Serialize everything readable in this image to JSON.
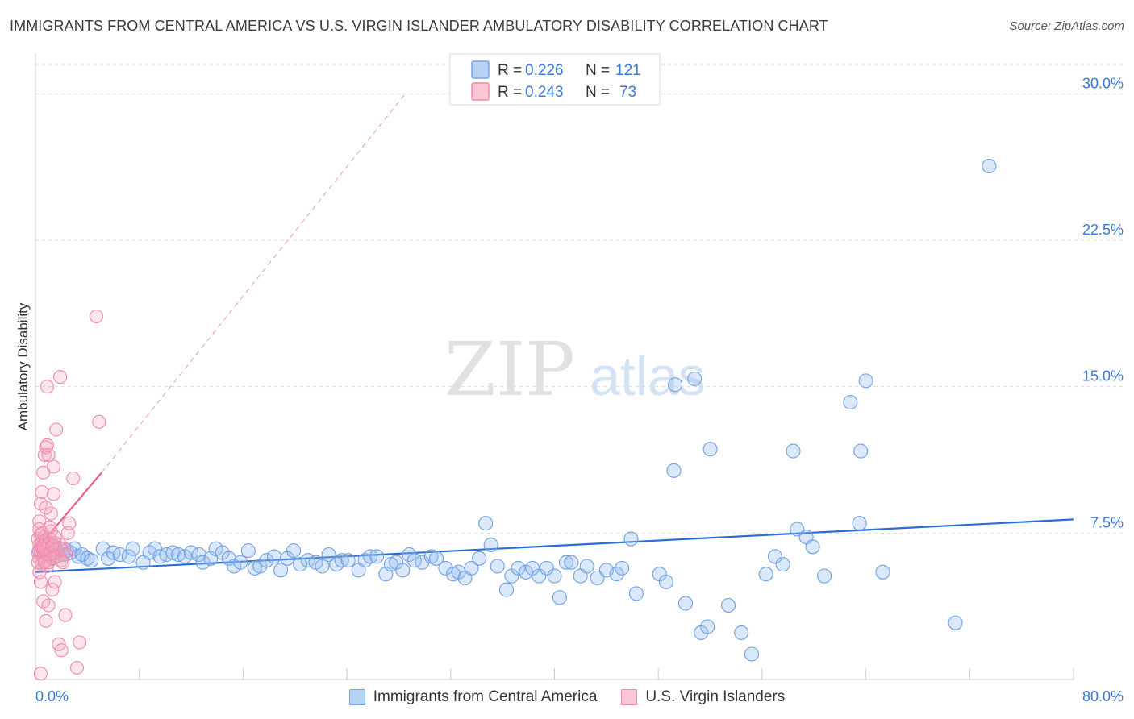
{
  "title": "IMMIGRANTS FROM CENTRAL AMERICA VS U.S. VIRGIN ISLANDER AMBULATORY DISABILITY CORRELATION CHART",
  "source": "Source: ZipAtlas.com",
  "watermark": {
    "zip": "ZIP",
    "atlas": "atlas"
  },
  "legend_top": [
    {
      "r_label": "R =",
      "r_value": "0.226",
      "n_label": "N =",
      "n_value": "121"
    },
    {
      "r_label": "R =",
      "r_value": "0.243",
      "n_label": "N =",
      "n_value": "73"
    }
  ],
  "chart_data": {
    "type": "scatter",
    "xlabel": "",
    "ylabel": "Ambulatory Disability",
    "xlim": [
      0,
      80
    ],
    "ylim": [
      0,
      31.5
    ],
    "x_tick_labels": [
      "0.0%",
      "80.0%"
    ],
    "y_ticks": [
      7.5,
      15.0,
      22.5,
      30.0
    ],
    "y_tick_labels": [
      "7.5%",
      "15.0%",
      "22.5%",
      "30.0%"
    ],
    "grid": "horizontal dashed",
    "legend_position": "top-center and bottom",
    "colors": {
      "blue": "#6fa0e3",
      "blue_line": "#2a6dd4",
      "pink": "#f08aa7",
      "pink_line": "#e8608a",
      "axis_text": "#3a78d8"
    },
    "series": [
      {
        "name": "Immigrants from Central America",
        "color": "#6fa0e3",
        "trend": {
          "x": [
            0,
            80
          ],
          "y": [
            5.5,
            8.2
          ]
        },
        "points": [
          [
            0.3,
            6.6
          ],
          [
            0.5,
            6.8
          ],
          [
            0.7,
            6.4
          ],
          [
            0.9,
            7.0
          ],
          [
            1.1,
            6.6
          ],
          [
            1.3,
            6.2
          ],
          [
            1.5,
            6.8
          ],
          [
            1.7,
            6.5
          ],
          [
            1.9,
            6.7
          ],
          [
            2.1,
            6.4
          ],
          [
            2.4,
            6.6
          ],
          [
            2.7,
            6.5
          ],
          [
            3.0,
            6.7
          ],
          [
            3.3,
            6.3
          ],
          [
            3.6,
            6.4
          ],
          [
            4.0,
            6.2
          ],
          [
            4.3,
            6.1
          ],
          [
            5.2,
            6.7
          ],
          [
            5.6,
            6.2
          ],
          [
            6.0,
            6.5
          ],
          [
            6.5,
            6.4
          ],
          [
            7.2,
            6.3
          ],
          [
            7.5,
            6.7
          ],
          [
            8.3,
            6.0
          ],
          [
            8.8,
            6.5
          ],
          [
            9.2,
            6.7
          ],
          [
            9.6,
            6.3
          ],
          [
            10.1,
            6.4
          ],
          [
            10.6,
            6.5
          ],
          [
            11.0,
            6.4
          ],
          [
            11.5,
            6.3
          ],
          [
            12.0,
            6.5
          ],
          [
            12.6,
            6.4
          ],
          [
            12.9,
            6.0
          ],
          [
            13.5,
            6.2
          ],
          [
            13.9,
            6.7
          ],
          [
            14.4,
            6.5
          ],
          [
            14.9,
            6.2
          ],
          [
            15.3,
            5.8
          ],
          [
            15.8,
            6.0
          ],
          [
            16.4,
            6.6
          ],
          [
            16.9,
            5.7
          ],
          [
            17.3,
            5.8
          ],
          [
            17.8,
            6.1
          ],
          [
            18.4,
            6.3
          ],
          [
            18.9,
            5.6
          ],
          [
            19.4,
            6.2
          ],
          [
            19.9,
            6.6
          ],
          [
            20.4,
            5.9
          ],
          [
            21.0,
            6.1
          ],
          [
            21.6,
            6.0
          ],
          [
            22.1,
            5.8
          ],
          [
            22.6,
            6.4
          ],
          [
            23.2,
            5.9
          ],
          [
            23.6,
            6.1
          ],
          [
            24.1,
            6.1
          ],
          [
            24.9,
            5.6
          ],
          [
            25.4,
            6.1
          ],
          [
            25.8,
            6.3
          ],
          [
            26.3,
            6.3
          ],
          [
            27.0,
            5.4
          ],
          [
            27.4,
            5.9
          ],
          [
            27.8,
            6.0
          ],
          [
            28.3,
            5.6
          ],
          [
            28.8,
            6.4
          ],
          [
            29.2,
            6.1
          ],
          [
            29.8,
            6.0
          ],
          [
            30.5,
            6.3
          ],
          [
            30.9,
            6.2
          ],
          [
            31.6,
            5.7
          ],
          [
            32.2,
            5.4
          ],
          [
            32.6,
            5.5
          ],
          [
            33.1,
            5.2
          ],
          [
            33.6,
            5.7
          ],
          [
            34.2,
            6.2
          ],
          [
            34.7,
            8.0
          ],
          [
            35.1,
            6.9
          ],
          [
            35.6,
            5.8
          ],
          [
            36.3,
            4.6
          ],
          [
            36.7,
            5.3
          ],
          [
            37.2,
            5.7
          ],
          [
            37.8,
            5.5
          ],
          [
            38.3,
            5.7
          ],
          [
            38.8,
            5.3
          ],
          [
            39.4,
            5.7
          ],
          [
            40.0,
            5.3
          ],
          [
            40.4,
            4.2
          ],
          [
            40.9,
            6.0
          ],
          [
            41.3,
            6.0
          ],
          [
            42.0,
            5.3
          ],
          [
            42.5,
            5.8
          ],
          [
            43.3,
            5.2
          ],
          [
            44.0,
            5.6
          ],
          [
            44.8,
            5.4
          ],
          [
            45.2,
            5.7
          ],
          [
            45.9,
            7.2
          ],
          [
            46.3,
            4.4
          ],
          [
            48.1,
            5.4
          ],
          [
            48.6,
            5.0
          ],
          [
            49.2,
            10.7
          ],
          [
            49.3,
            15.1
          ],
          [
            50.1,
            3.9
          ],
          [
            50.8,
            15.4
          ],
          [
            51.3,
            2.4
          ],
          [
            51.8,
            2.7
          ],
          [
            52.0,
            11.8
          ],
          [
            53.4,
            3.8
          ],
          [
            54.4,
            2.4
          ],
          [
            55.2,
            1.3
          ],
          [
            56.3,
            5.4
          ],
          [
            57.0,
            6.3
          ],
          [
            57.6,
            5.9
          ],
          [
            58.4,
            11.7
          ],
          [
            58.7,
            7.7
          ],
          [
            59.4,
            7.3
          ],
          [
            59.9,
            6.8
          ],
          [
            60.8,
            5.3
          ],
          [
            62.8,
            14.2
          ],
          [
            63.5,
            8.0
          ],
          [
            63.6,
            11.7
          ],
          [
            64.0,
            15.3
          ],
          [
            65.3,
            5.5
          ],
          [
            70.9,
            2.9
          ],
          [
            73.5,
            26.3
          ]
        ]
      },
      {
        "name": "U.S. Virgin Islanders",
        "color": "#f08aa7",
        "trend": {
          "x": [
            0,
            5.1
          ],
          "y": [
            6.6,
            10.6
          ]
        },
        "trend_dashed": {
          "x": [
            5.1,
            28.5
          ],
          "y": [
            10.6,
            30.0
          ]
        },
        "points": [
          [
            0.2,
            6.5
          ],
          [
            0.2,
            7.2
          ],
          [
            0.3,
            6.9
          ],
          [
            0.3,
            6.2
          ],
          [
            0.4,
            7.4
          ],
          [
            0.4,
            6.6
          ],
          [
            0.5,
            5.9
          ],
          [
            0.5,
            7.0
          ],
          [
            0.6,
            6.3
          ],
          [
            0.6,
            6.8
          ],
          [
            0.7,
            7.3
          ],
          [
            0.7,
            6.1
          ],
          [
            0.8,
            6.7
          ],
          [
            0.8,
            7.1
          ],
          [
            0.9,
            6.4
          ],
          [
            1.0,
            6.9
          ],
          [
            1.0,
            6.0
          ],
          [
            1.1,
            7.2
          ],
          [
            1.2,
            6.5
          ],
          [
            1.3,
            6.8
          ],
          [
            1.4,
            6.2
          ],
          [
            1.5,
            7.0
          ],
          [
            1.6,
            6.6
          ],
          [
            1.7,
            6.3
          ],
          [
            1.9,
            6.9
          ],
          [
            2.0,
            6.1
          ],
          [
            2.2,
            6.7
          ],
          [
            2.4,
            6.4
          ],
          [
            0.3,
            8.1
          ],
          [
            0.4,
            9.0
          ],
          [
            0.5,
            9.6
          ],
          [
            0.6,
            10.6
          ],
          [
            0.7,
            11.5
          ],
          [
            0.8,
            11.9
          ],
          [
            1.0,
            11.5
          ],
          [
            1.2,
            8.5
          ],
          [
            1.4,
            9.5
          ],
          [
            1.6,
            12.8
          ],
          [
            1.9,
            15.5
          ],
          [
            0.9,
            15.0
          ],
          [
            0.3,
            5.5
          ],
          [
            0.4,
            5.0
          ],
          [
            0.6,
            4.0
          ],
          [
            0.8,
            3.0
          ],
          [
            1.0,
            3.8
          ],
          [
            1.3,
            4.6
          ],
          [
            1.5,
            5.0
          ],
          [
            1.8,
            1.8
          ],
          [
            2.0,
            1.5
          ],
          [
            2.3,
            3.3
          ],
          [
            2.5,
            7.5
          ],
          [
            2.6,
            8.0
          ],
          [
            2.9,
            10.3
          ],
          [
            3.2,
            0.6
          ],
          [
            3.4,
            1.9
          ],
          [
            4.9,
            13.2
          ],
          [
            4.7,
            18.6
          ],
          [
            0.4,
            0.3
          ],
          [
            0.9,
            5.8
          ],
          [
            1.1,
            6.4
          ],
          [
            1.2,
            7.6
          ],
          [
            0.2,
            6.0
          ],
          [
            0.3,
            7.7
          ],
          [
            0.5,
            7.5
          ],
          [
            0.6,
            6.7
          ],
          [
            0.7,
            6.0
          ],
          [
            1.1,
            7.8
          ],
          [
            1.3,
            6.9
          ],
          [
            1.5,
            7.3
          ],
          [
            0.8,
            8.8
          ],
          [
            1.4,
            10.9
          ],
          [
            0.9,
            12.0
          ],
          [
            2.1,
            6.0
          ]
        ]
      }
    ]
  }
}
